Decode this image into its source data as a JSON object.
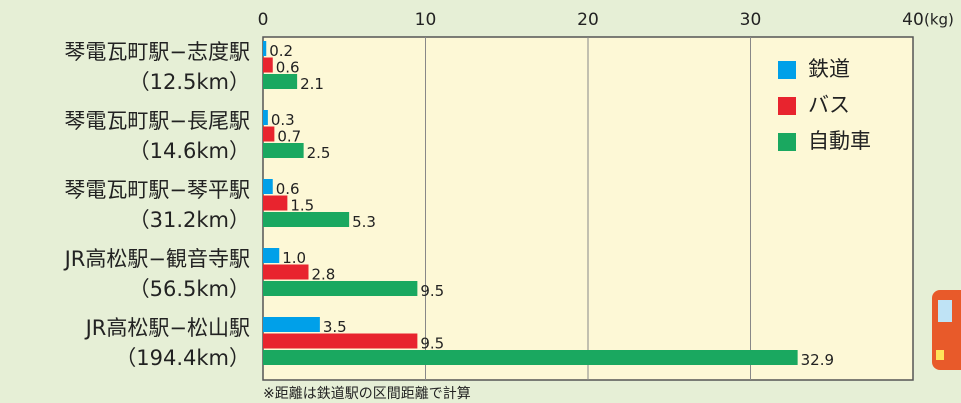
{
  "chart_data": {
    "type": "hbar",
    "categories": [
      [
        "琴電瓦町駅−志度駅",
        "（12.5km）"
      ],
      [
        "琴電瓦町駅−長尾駅",
        "（14.6km）"
      ],
      [
        "琴電瓦町駅−琴平駅",
        "（31.2km）"
      ],
      [
        "JR高松駅−観音寺駅",
        "（56.5km）"
      ],
      [
        "JR高松駅−松山駅",
        "（194.4km）"
      ]
    ],
    "series": [
      {
        "name": "鉄道",
        "color": "#00a0e9",
        "values": [
          0.2,
          0.3,
          0.6,
          1.0,
          3.5
        ],
        "value_labels": [
          "0.2",
          "0.3",
          "0.6",
          "1.0",
          "3.5"
        ]
      },
      {
        "name": "バス",
        "color": "#e8242e",
        "values": [
          0.6,
          0.7,
          1.5,
          2.8,
          9.5
        ],
        "value_labels": [
          "0.6",
          "0.7",
          "1.5",
          "2.8",
          "9.5"
        ]
      },
      {
        "name": "自動車",
        "color": "#1aa860",
        "values": [
          2.1,
          2.5,
          5.3,
          9.5,
          32.9
        ],
        "value_labels": [
          "2.1",
          "2.5",
          "5.3",
          "9.5",
          "32.9"
        ]
      }
    ],
    "xlim": [
      0,
      40
    ],
    "xticks": [
      0,
      10,
      20,
      30,
      40
    ],
    "x_unit": "(kg)",
    "grid": true,
    "note": "※距離は鉄道駅の区間距離で計算"
  }
}
